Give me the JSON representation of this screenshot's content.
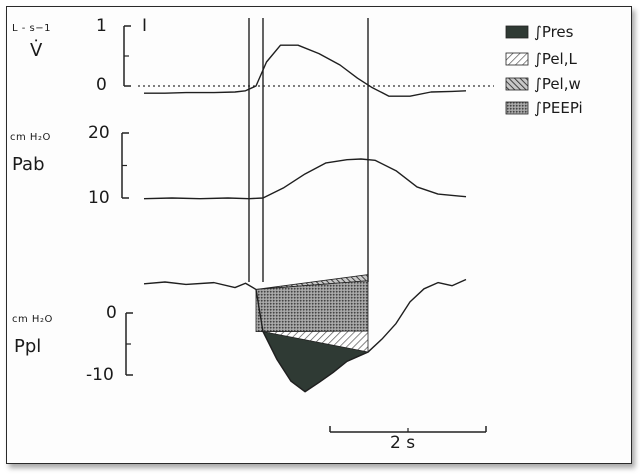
{
  "chart_data": {
    "type": "line",
    "title": "",
    "panels": [
      {
        "name": "flow",
        "unit_label": "L - s−1",
        "signal_label": "V̇",
        "ticks": [
          {
            "value": 1,
            "label": "1"
          },
          {
            "value": 0,
            "label": "0"
          }
        ],
        "scale_mark": "I",
        "zero_reference": "dotted",
        "trace": {
          "x_s": [
            -1.6,
            -1.3,
            -1.0,
            -0.6,
            -0.3,
            -0.15,
            0.0,
            0.15,
            0.35,
            0.6,
            0.9,
            1.2,
            1.45,
            1.65,
            1.9,
            2.2,
            2.5,
            2.8,
            3.0
          ],
          "y": [
            -0.12,
            -0.12,
            -0.11,
            -0.11,
            -0.1,
            -0.08,
            0.0,
            0.4,
            0.68,
            0.68,
            0.54,
            0.35,
            0.13,
            -0.02,
            -0.17,
            -0.17,
            -0.1,
            -0.09,
            -0.08
          ]
        }
      },
      {
        "name": "Pab",
        "unit_label": "cm H₂O",
        "signal_label": "Pab",
        "ticks": [
          {
            "value": 20,
            "label": "20"
          },
          {
            "value": 10,
            "label": "10"
          }
        ],
        "trace": {
          "x_s": [
            -1.6,
            -1.2,
            -0.8,
            -0.4,
            -0.1,
            0.1,
            0.4,
            0.7,
            1.0,
            1.3,
            1.5,
            1.7,
            2.0,
            2.3,
            2.6,
            2.9,
            3.0
          ],
          "y": [
            9.9,
            10.0,
            9.9,
            10.0,
            9.9,
            10.0,
            11.6,
            13.7,
            15.4,
            15.9,
            16.0,
            15.8,
            14.2,
            11.7,
            10.6,
            10.3,
            10.2
          ]
        }
      },
      {
        "name": "Ppl",
        "unit_label": "cm H₂O",
        "signal_label": "Ppl",
        "ticks": [
          {
            "value": 0,
            "label": "0"
          },
          {
            "value": -10,
            "label": "-10"
          }
        ],
        "trace": {
          "x_s": [
            -1.6,
            -1.3,
            -1.0,
            -0.6,
            -0.3,
            -0.15,
            0.0,
            0.1,
            0.3,
            0.5,
            0.7,
            0.9,
            1.1,
            1.3,
            1.6,
            1.8,
            2.0,
            2.2,
            2.4,
            2.6,
            2.8,
            3.0
          ],
          "y": [
            4.7,
            5.0,
            4.6,
            4.9,
            4.1,
            4.8,
            3.8,
            -3.0,
            -7.5,
            -11.0,
            -12.7,
            -11.2,
            -9.6,
            -7.8,
            -6.3,
            -4.2,
            -1.7,
            1.8,
            3.9,
            4.9,
            4.4,
            5.4
          ]
        },
        "work_areas": [
          {
            "name": "∫Pres",
            "pattern": "solid-dark",
            "x_s": [
              0.0,
              0.1,
              0.3,
              0.5,
              0.7,
              0.9,
              1.1,
              1.3,
              1.6
            ],
            "y_lower": [
              -3.0,
              -3.0,
              -7.5,
              -11.0,
              -12.7,
              -11.2,
              -9.6,
              -7.8,
              -6.3
            ],
            "y_upper": [
              -3.0,
              -3.0,
              -3.3,
              -3.6,
              -3.9,
              -4.3,
              -4.9,
              -5.5,
              -6.3
            ]
          },
          {
            "name": "∫Pel,L",
            "pattern": "hatch-light",
            "x_s": [
              0.1,
              1.6
            ],
            "y_lower": [
              -3.0,
              -6.3
            ],
            "y_upper": [
              -3.0,
              -2.9
            ]
          },
          {
            "name": "∫Pel,w",
            "pattern": "hatch-dark",
            "x_s": [
              0.0,
              1.6
            ],
            "y_lower": [
              3.8,
              5.2
            ],
            "y_upper": [
              3.8,
              6.2
            ]
          },
          {
            "name": "∫PEEPi",
            "pattern": "dotted-grey",
            "x_s": [
              0.0,
              1.6
            ],
            "y_lower": [
              -3.0,
              -2.9
            ],
            "y_upper": [
              3.8,
              5.2
            ]
          }
        ]
      }
    ],
    "markers_x_s": [
      -0.1,
      0.1,
      1.6
    ],
    "legend": {
      "placement": "top-right",
      "items": [
        {
          "label": "∫Pres",
          "pattern": "solid-dark"
        },
        {
          "label": "∫Pel,L",
          "pattern": "hatch-light"
        },
        {
          "label": "∫Pel,w",
          "pattern": "hatch-dark"
        },
        {
          "label": "∫PEEPi",
          "pattern": "dotted-grey"
        }
      ]
    },
    "time_scale": {
      "label": "2 s",
      "duration_s": 2
    }
  }
}
